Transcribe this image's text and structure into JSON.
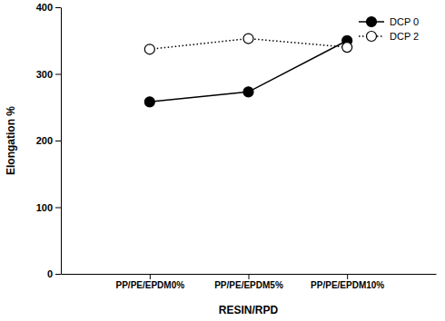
{
  "chart_data": {
    "type": "line",
    "x_label": "RESIN/RPD",
    "y_label": "Elongation %",
    "categories": [
      "PP/PE/EPDM0%",
      "PP/PE/EPDM5%",
      "PP/PE/EPDM10%"
    ],
    "series": [
      {
        "name": "DCP 0",
        "color": "#000000",
        "marker": "circle",
        "line_style": "solid",
        "values": [
          258,
          273,
          350
        ]
      },
      {
        "name": "DCP 2",
        "color": "#000000",
        "marker": "open-circle",
        "line_style": "dotted",
        "values": [
          337,
          353,
          340
        ]
      }
    ],
    "ylim": [
      0,
      400
    ],
    "yticks": [
      0,
      100,
      200,
      300,
      400
    ],
    "legend": "upper-right"
  }
}
